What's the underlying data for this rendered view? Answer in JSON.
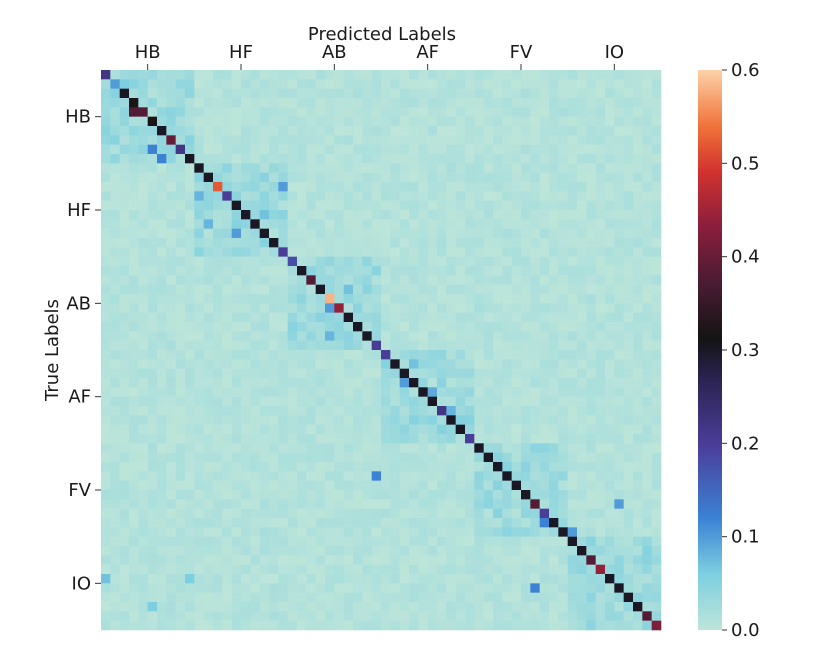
{
  "chart_data": {
    "type": "heatmap",
    "title": "",
    "xlabel": "Predicted Labels",
    "ylabel": "True Labels",
    "n_classes": 60,
    "group_labels": [
      "HB",
      "HF",
      "AB",
      "AF",
      "FV",
      "IO"
    ],
    "group_size": 10,
    "colorbar": {
      "min": 0.0,
      "max": 0.6,
      "ticks": [
        "0.0",
        "0.1",
        "0.2",
        "0.3",
        "0.4",
        "0.5",
        "0.6"
      ],
      "tick_values": [
        0.0,
        0.1,
        0.2,
        0.3,
        0.4,
        0.5,
        0.6
      ],
      "colormap": "icefire"
    },
    "background_value": 0.01,
    "diagonal": [
      0.22,
      0.1,
      0.3,
      0.32,
      0.38,
      0.32,
      0.3,
      0.4,
      0.22,
      0.3,
      0.3,
      0.3,
      0.52,
      0.2,
      0.3,
      0.3,
      0.3,
      0.3,
      0.3,
      0.2,
      0.18,
      0.3,
      0.38,
      0.3,
      0.58,
      0.44,
      0.3,
      0.3,
      0.3,
      0.2,
      0.2,
      0.3,
      0.3,
      0.3,
      0.3,
      0.3,
      0.22,
      0.3,
      0.3,
      0.2,
      0.3,
      0.3,
      0.3,
      0.3,
      0.3,
      0.3,
      0.38,
      0.2,
      0.3,
      0.3,
      0.3,
      0.3,
      0.38,
      0.44,
      0.3,
      0.3,
      0.3,
      0.3,
      0.38,
      0.42
    ],
    "highlights": [
      {
        "row": 4,
        "col": 3,
        "value": 0.38
      },
      {
        "row": 8,
        "col": 5,
        "value": 0.12
      },
      {
        "row": 9,
        "col": 6,
        "value": 0.12
      },
      {
        "row": 1,
        "col": 2,
        "value": 0.06
      },
      {
        "row": 2,
        "col": 1,
        "value": 0.05
      },
      {
        "row": 13,
        "col": 10,
        "value": 0.08
      },
      {
        "row": 12,
        "col": 19,
        "value": 0.1
      },
      {
        "row": 16,
        "col": 11,
        "value": 0.08
      },
      {
        "row": 17,
        "col": 14,
        "value": 0.1
      },
      {
        "row": 15,
        "col": 17,
        "value": 0.07
      },
      {
        "row": 25,
        "col": 24,
        "value": 0.1
      },
      {
        "row": 23,
        "col": 26,
        "value": 0.07
      },
      {
        "row": 28,
        "col": 24,
        "value": 0.08
      },
      {
        "row": 31,
        "col": 33,
        "value": 0.07
      },
      {
        "row": 33,
        "col": 32,
        "value": 0.1
      },
      {
        "row": 34,
        "col": 35,
        "value": 0.09
      },
      {
        "row": 36,
        "col": 37,
        "value": 0.08
      },
      {
        "row": 43,
        "col": 29,
        "value": 0.12
      },
      {
        "row": 48,
        "col": 47,
        "value": 0.12
      },
      {
        "row": 49,
        "col": 50,
        "value": 0.1
      },
      {
        "row": 46,
        "col": 55,
        "value": 0.1
      },
      {
        "row": 55,
        "col": 46,
        "value": 0.12
      },
      {
        "row": 54,
        "col": 9,
        "value": 0.06
      },
      {
        "row": 57,
        "col": 5,
        "value": 0.06
      },
      {
        "row": 54,
        "col": 0,
        "value": 0.07
      }
    ]
  }
}
